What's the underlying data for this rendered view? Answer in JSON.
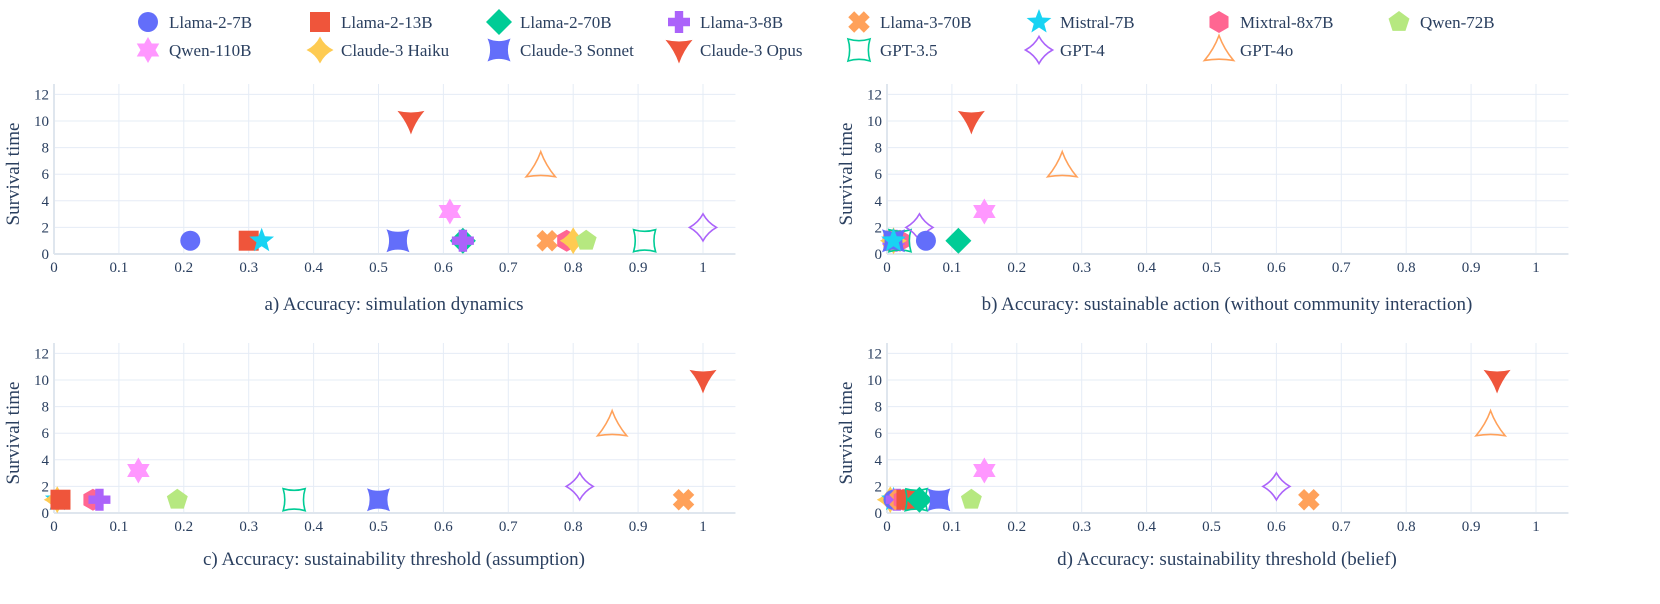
{
  "legend": {
    "items": [
      {
        "name": "Llama-2-7B",
        "symbol": "circle",
        "color": "#636EFA"
      },
      {
        "name": "Llama-2-13B",
        "symbol": "square",
        "color": "#EF553B"
      },
      {
        "name": "Llama-2-70B",
        "symbol": "diamond",
        "color": "#00CC96"
      },
      {
        "name": "Llama-3-8B",
        "symbol": "cross",
        "color": "#AB63FA"
      },
      {
        "name": "Llama-3-70B",
        "symbol": "x",
        "color": "#FFA15A"
      },
      {
        "name": "Mistral-7B",
        "symbol": "star",
        "color": "#19D3F3"
      },
      {
        "name": "Mixtral-8x7B",
        "symbol": "hexagon",
        "color": "#FF6692"
      },
      {
        "name": "Qwen-72B",
        "symbol": "pentagon",
        "color": "#B6E880"
      },
      {
        "name": "Qwen-110B",
        "symbol": "hexagram",
        "color": "#FF97FF"
      },
      {
        "name": "Claude-3 Haiku",
        "symbol": "star-diamond",
        "color": "#FECB52"
      },
      {
        "name": "Claude-3 Sonnet",
        "symbol": "square-x",
        "color": "#636EFA"
      },
      {
        "name": "Claude-3 Opus",
        "symbol": "arrow-down",
        "color": "#EF553B"
      },
      {
        "name": "GPT-3.5",
        "symbol": "star-square-open",
        "color": "#00CC96"
      },
      {
        "name": "GPT-4",
        "symbol": "star-diamond-open",
        "color": "#AB63FA"
      },
      {
        "name": "GPT-4o",
        "symbol": "star-triangle-open",
        "color": "#FFA15A"
      }
    ]
  },
  "chart_data": [
    {
      "type": "scatter",
      "title": "a) Accuracy: simulation dynamics",
      "xlabel": "",
      "ylabel": "Survival time",
      "xlim": [
        0,
        1.05
      ],
      "ylim": [
        0,
        12.5
      ],
      "xticks": [
        "0",
        "0.1",
        "0.2",
        "0.3",
        "0.4",
        "0.5",
        "0.6",
        "0.7",
        "0.8",
        "0.9",
        "1"
      ],
      "yticks": [
        "0",
        "2",
        "4",
        "6",
        "8",
        "10",
        "12"
      ],
      "points": [
        {
          "series": "Llama-2-7B",
          "x": 0.21,
          "y": 1
        },
        {
          "series": "Llama-2-13B",
          "x": 0.3,
          "y": 1
        },
        {
          "series": "Mistral-7B",
          "x": 0.32,
          "y": 1
        },
        {
          "series": "Claude-3 Sonnet",
          "x": 0.53,
          "y": 1
        },
        {
          "series": "Llama-2-70B",
          "x": 0.63,
          "y": 1
        },
        {
          "series": "Llama-3-8B",
          "x": 0.63,
          "y": 1
        },
        {
          "series": "Qwen-110B",
          "x": 0.61,
          "y": 3.2
        },
        {
          "series": "Claude-3 Opus",
          "x": 0.55,
          "y": 10
        },
        {
          "series": "GPT-4o",
          "x": 0.75,
          "y": 6.6
        },
        {
          "series": "Llama-3-70B",
          "x": 0.76,
          "y": 1
        },
        {
          "series": "Mixtral-8x7B",
          "x": 0.79,
          "y": 1
        },
        {
          "series": "Claude-3 Haiku",
          "x": 0.8,
          "y": 1
        },
        {
          "series": "Qwen-72B",
          "x": 0.82,
          "y": 1
        },
        {
          "series": "GPT-3.5",
          "x": 0.91,
          "y": 1
        },
        {
          "series": "GPT-4",
          "x": 1.0,
          "y": 2
        }
      ]
    },
    {
      "type": "scatter",
      "title": "b) Accuracy: sustainable action (without community interaction)",
      "xlabel": "",
      "ylabel": "Survival time",
      "xlim": [
        0,
        1.05
      ],
      "ylim": [
        0,
        12.5
      ],
      "xticks": [
        "0",
        "0.1",
        "0.2",
        "0.3",
        "0.4",
        "0.5",
        "0.6",
        "0.7",
        "0.8",
        "0.9",
        "1"
      ],
      "yticks": [
        "0",
        "2",
        "4",
        "6",
        "8",
        "10",
        "12"
      ],
      "points": [
        {
          "series": "Llama-2-13B",
          "x": 0.01,
          "y": 1
        },
        {
          "series": "Llama-3-70B",
          "x": 0.01,
          "y": 1
        },
        {
          "series": "Mixtral-8x7B",
          "x": 0.02,
          "y": 1
        },
        {
          "series": "Llama-3-8B",
          "x": 0.01,
          "y": 1
        },
        {
          "series": "Qwen-72B",
          "x": 0.01,
          "y": 1
        },
        {
          "series": "Claude-3 Haiku",
          "x": 0.01,
          "y": 1
        },
        {
          "series": "GPT-3.5",
          "x": 0.02,
          "y": 1
        },
        {
          "series": "Claude-3 Sonnet",
          "x": 0.01,
          "y": 1
        },
        {
          "series": "Mistral-7B",
          "x": 0.01,
          "y": 1
        },
        {
          "series": "GPT-4",
          "x": 0.05,
          "y": 2
        },
        {
          "series": "Llama-2-7B",
          "x": 0.06,
          "y": 1
        },
        {
          "series": "Llama-2-70B",
          "x": 0.11,
          "y": 1
        },
        {
          "series": "Claude-3 Opus",
          "x": 0.13,
          "y": 10
        },
        {
          "series": "Qwen-110B",
          "x": 0.15,
          "y": 3.2
        },
        {
          "series": "GPT-4o",
          "x": 0.27,
          "y": 6.6
        }
      ]
    },
    {
      "type": "scatter",
      "title": "c) Accuracy: sustainability threshold (assumption)",
      "xlabel": "",
      "ylabel": "Survival time",
      "xlim": [
        0,
        1.05
      ],
      "ylim": [
        0,
        12.5
      ],
      "xticks": [
        "0",
        "0.1",
        "0.2",
        "0.3",
        "0.4",
        "0.5",
        "0.6",
        "0.7",
        "0.8",
        "0.9",
        "1"
      ],
      "yticks": [
        "0",
        "2",
        "4",
        "6",
        "8",
        "10",
        "12"
      ],
      "points": [
        {
          "series": "Mistral-7B",
          "x": 0.005,
          "y": 1
        },
        {
          "series": "Claude-3 Haiku",
          "x": 0.005,
          "y": 1
        },
        {
          "series": "Llama-2-13B",
          "x": 0.01,
          "y": 1
        },
        {
          "series": "Mixtral-8x7B",
          "x": 0.06,
          "y": 1
        },
        {
          "series": "Llama-3-8B",
          "x": 0.07,
          "y": 1
        },
        {
          "series": "Qwen-110B",
          "x": 0.13,
          "y": 3.2
        },
        {
          "series": "Qwen-72B",
          "x": 0.19,
          "y": 1
        },
        {
          "series": "GPT-3.5",
          "x": 0.37,
          "y": 1
        },
        {
          "series": "Claude-3 Sonnet",
          "x": 0.5,
          "y": 1
        },
        {
          "series": "GPT-4",
          "x": 0.81,
          "y": 2
        },
        {
          "series": "GPT-4o",
          "x": 0.86,
          "y": 6.6
        },
        {
          "series": "Llama-3-70B",
          "x": 0.97,
          "y": 1
        },
        {
          "series": "Claude-3 Opus",
          "x": 1.0,
          "y": 10
        }
      ]
    },
    {
      "type": "scatter",
      "title": "d) Accuracy: sustainability threshold (belief)",
      "xlabel": "",
      "ylabel": "Survival time",
      "xlim": [
        0,
        1.05
      ],
      "ylim": [
        0,
        12.5
      ],
      "xticks": [
        "0",
        "0.1",
        "0.2",
        "0.3",
        "0.4",
        "0.5",
        "0.6",
        "0.7",
        "0.8",
        "0.9",
        "1"
      ],
      "yticks": [
        "0",
        "2",
        "4",
        "6",
        "8",
        "10",
        "12"
      ],
      "points": [
        {
          "series": "Claude-3 Haiku",
          "x": 0.005,
          "y": 1
        },
        {
          "series": "Mistral-7B",
          "x": 0.01,
          "y": 1
        },
        {
          "series": "Llama-2-7B",
          "x": 0.01,
          "y": 1
        },
        {
          "series": "Llama-3-8B",
          "x": 0.015,
          "y": 1
        },
        {
          "series": "Llama-3-70B",
          "x": 0.02,
          "y": 1
        },
        {
          "series": "Mixtral-8x7B",
          "x": 0.025,
          "y": 1
        },
        {
          "series": "Llama-2-13B",
          "x": 0.03,
          "y": 1
        },
        {
          "series": "GPT-3.5",
          "x": 0.045,
          "y": 1
        },
        {
          "series": "Llama-2-70B",
          "x": 0.05,
          "y": 1
        },
        {
          "series": "Claude-3 Sonnet",
          "x": 0.08,
          "y": 1
        },
        {
          "series": "Qwen-72B",
          "x": 0.13,
          "y": 1
        },
        {
          "series": "Qwen-110B",
          "x": 0.15,
          "y": 3.2
        },
        {
          "series": "GPT-4",
          "x": 0.6,
          "y": 2
        },
        {
          "series": "Llama-3-70B",
          "x": 0.65,
          "y": 1
        },
        {
          "series": "GPT-4o",
          "x": 0.93,
          "y": 6.6
        },
        {
          "series": "Claude-3 Opus",
          "x": 0.94,
          "y": 10
        }
      ]
    }
  ]
}
